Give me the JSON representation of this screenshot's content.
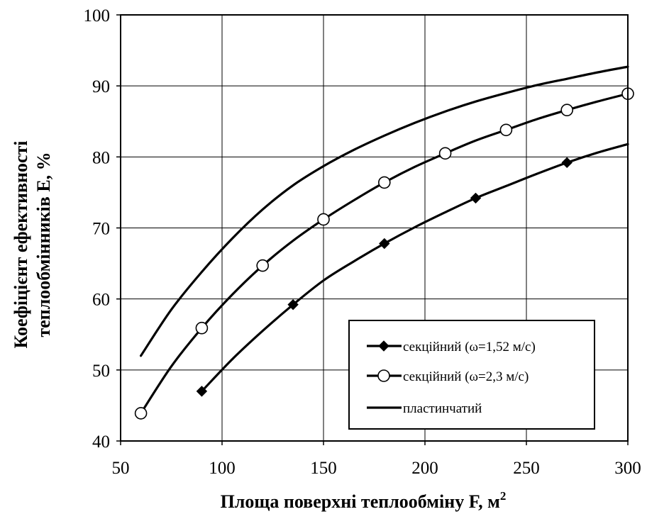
{
  "chart_data": {
    "type": "line",
    "xlabel": "Площа поверхні теплообміну F, м",
    "xlabel_sup": "2",
    "ylabel_line1": "Коефіцієнт ефективності",
    "ylabel_line2": "теплообмінників  E, %",
    "xlim": [
      50,
      300
    ],
    "ylim": [
      40,
      100
    ],
    "x_ticks": [
      "50",
      "100",
      "150",
      "200",
      "250",
      "300"
    ],
    "y_ticks": [
      "40",
      "50",
      "60",
      "70",
      "80",
      "90",
      "100"
    ],
    "grid": true,
    "legend_position": "bottom-right",
    "series": [
      {
        "name": "секційний (ω=1,52 м/с)",
        "marker": "diamond",
        "x": [
          90,
          135,
          180,
          225,
          270
        ],
        "y": [
          47,
          59.2,
          67.8,
          74.2,
          79.2
        ],
        "curve_x": [
          90,
          105,
          120,
          135,
          150,
          165,
          180,
          195,
          210,
          225,
          240,
          255,
          270,
          285,
          300
        ],
        "curve_y": [
          47,
          51.5,
          55.5,
          59.2,
          62.6,
          65.3,
          67.8,
          70.1,
          72.2,
          74.2,
          75.9,
          77.6,
          79.2,
          80.6,
          81.8
        ]
      },
      {
        "name": "секційний (ω=2,3 м/с)",
        "marker": "circle",
        "x": [
          60,
          90,
          120,
          150,
          180,
          210,
          240,
          270,
          300
        ],
        "y": [
          43.9,
          55.9,
          64.7,
          71.2,
          76.4,
          80.5,
          83.8,
          86.6,
          88.9
        ],
        "curve_x": [
          60,
          75,
          90,
          105,
          120,
          135,
          150,
          165,
          180,
          195,
          210,
          225,
          240,
          255,
          270,
          285,
          300
        ],
        "curve_y": [
          43.9,
          50.5,
          55.9,
          60.6,
          64.7,
          68.2,
          71.2,
          73.9,
          76.4,
          78.6,
          80.5,
          82.3,
          83.8,
          85.3,
          86.6,
          87.8,
          88.9
        ]
      },
      {
        "name": "пластинчатий",
        "marker": "none",
        "x": [
          60,
          75,
          90,
          105,
          120,
          135,
          150,
          165,
          180,
          195,
          210,
          225,
          240,
          255,
          270,
          285,
          300
        ],
        "y": [
          52,
          58.5,
          63.8,
          68.5,
          72.6,
          76,
          78.7,
          81,
          83,
          84.8,
          86.4,
          87.8,
          89,
          90.1,
          91,
          91.9,
          92.7
        ]
      }
    ]
  }
}
